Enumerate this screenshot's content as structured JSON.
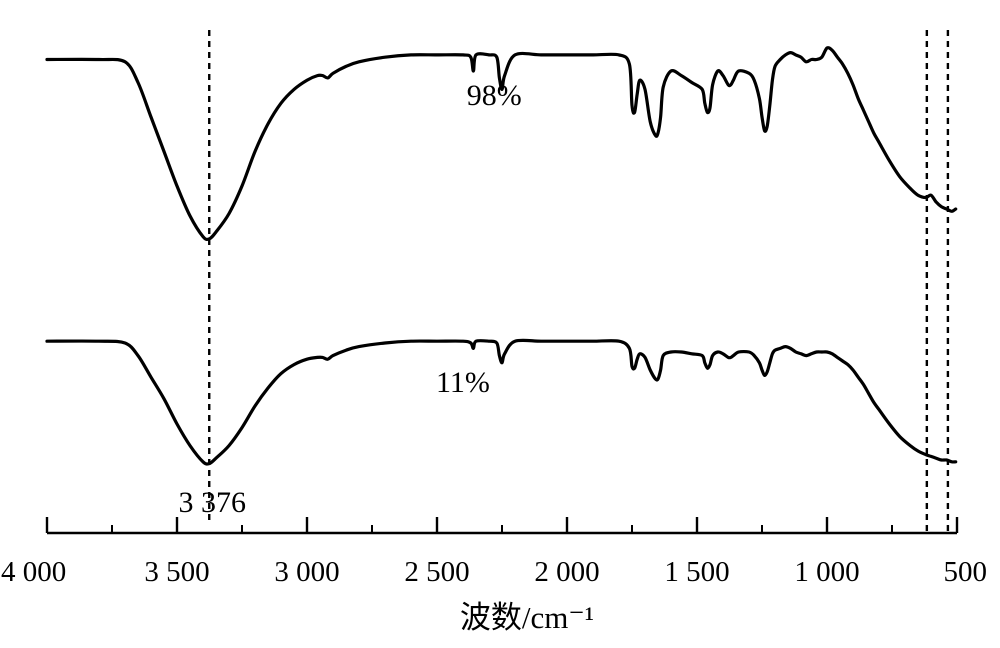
{
  "chart_data": {
    "type": "line",
    "title": "",
    "xlabel": "波数/cm⁻¹",
    "ylabel": "",
    "x_reversed": true,
    "xlim": [
      4000,
      500
    ],
    "xticks": [
      {
        "value": 4000,
        "label": "4 000"
      },
      {
        "value": 3500,
        "label": "3 500"
      },
      {
        "value": 3000,
        "label": "3 000"
      },
      {
        "value": 2500,
        "label": "2 500"
      },
      {
        "value": 2000,
        "label": "2 000"
      },
      {
        "value": 1500,
        "label": "1 500"
      },
      {
        "value": 1000,
        "label": "1 000"
      },
      {
        "value": 500,
        "label": "500"
      }
    ],
    "minor_tick_step": 250,
    "y_axis_shown": false,
    "ylim": [
      0,
      100
    ],
    "grid": false,
    "legend": "none",
    "reference_lines": [
      {
        "x": 3376,
        "style": "dashed"
      },
      {
        "x": 616,
        "style": "dashed"
      },
      {
        "x": 535,
        "style": "dashed"
      }
    ],
    "annotations": [
      {
        "text": "3 376",
        "x": 3376
      }
    ],
    "series": [
      {
        "label": "98%",
        "label_x": 2280,
        "x": [
          4000,
          3800,
          3700,
          3650,
          3600,
          3550,
          3500,
          3450,
          3400,
          3376,
          3350,
          3300,
          3250,
          3200,
          3150,
          3100,
          3050,
          3000,
          2960,
          2940,
          2920,
          2900,
          2850,
          2800,
          2700,
          2600,
          2500,
          2400,
          2370,
          2360,
          2350,
          2300,
          2270,
          2260,
          2250,
          2240,
          2200,
          2100,
          2000,
          1900,
          1800,
          1760,
          1750,
          1740,
          1730,
          1720,
          1700,
          1680,
          1660,
          1650,
          1640,
          1630,
          1600,
          1560,
          1520,
          1480,
          1470,
          1460,
          1450,
          1440,
          1420,
          1400,
          1380,
          1370,
          1360,
          1340,
          1300,
          1280,
          1260,
          1250,
          1240,
          1230,
          1220,
          1210,
          1200,
          1180,
          1160,
          1140,
          1120,
          1100,
          1080,
          1060,
          1040,
          1020,
          1000,
          980,
          960,
          940,
          920,
          900,
          880,
          860,
          840,
          820,
          800,
          760,
          720,
          680,
          650,
          620,
          600,
          580,
          560,
          540,
          520,
          505
        ],
        "y": [
          95,
          95,
          94,
          85,
          70,
          55,
          40,
          27,
          18,
          17,
          20,
          28,
          40,
          55,
          67,
          76,
          82,
          86,
          88,
          88,
          87,
          89,
          92,
          94,
          96,
          97,
          97,
          97,
          96,
          90,
          97,
          97,
          96,
          87,
          82,
          88,
          97,
          97,
          97,
          97,
          97,
          93,
          75,
          72,
          80,
          86,
          82,
          68,
          62,
          63,
          70,
          83,
          90,
          88,
          85,
          82,
          76,
          72,
          74,
          84,
          90,
          88,
          84,
          84,
          86,
          90,
          89,
          86,
          78,
          70,
          64,
          66,
          75,
          86,
          92,
          95,
          97,
          98,
          97,
          96,
          94,
          95,
          95,
          96,
          100,
          99,
          96,
          93,
          89,
          84,
          78,
          73,
          68,
          63,
          59,
          51,
          44,
          39,
          36,
          35,
          36,
          33,
          31,
          30,
          29,
          30
        ]
      },
      {
        "label": "11%",
        "label_x": 2400,
        "x": [
          4000,
          3800,
          3700,
          3650,
          3600,
          3550,
          3500,
          3450,
          3400,
          3376,
          3350,
          3300,
          3250,
          3200,
          3150,
          3100,
          3050,
          3000,
          2960,
          2940,
          2920,
          2900,
          2850,
          2800,
          2700,
          2600,
          2500,
          2400,
          2370,
          2360,
          2350,
          2300,
          2270,
          2260,
          2250,
          2240,
          2200,
          2100,
          2000,
          1900,
          1800,
          1760,
          1750,
          1740,
          1730,
          1720,
          1700,
          1680,
          1660,
          1650,
          1640,
          1630,
          1600,
          1560,
          1520,
          1480,
          1470,
          1460,
          1450,
          1440,
          1420,
          1400,
          1380,
          1370,
          1360,
          1340,
          1300,
          1280,
          1260,
          1250,
          1240,
          1230,
          1220,
          1210,
          1200,
          1180,
          1160,
          1140,
          1120,
          1100,
          1080,
          1060,
          1040,
          1020,
          1000,
          980,
          960,
          940,
          920,
          900,
          880,
          860,
          840,
          820,
          800,
          760,
          720,
          680,
          650,
          620,
          600,
          580,
          560,
          540,
          520,
          505
        ],
        "y": [
          96,
          96,
          95,
          88,
          76,
          64,
          50,
          38,
          29,
          28,
          31,
          38,
          48,
          60,
          70,
          78,
          83,
          86,
          87,
          87,
          86,
          88,
          91,
          93,
          95,
          96,
          96,
          96,
          95,
          92,
          96,
          96,
          95,
          88,
          84,
          89,
          96,
          96,
          96,
          96,
          96,
          92,
          82,
          81,
          86,
          89,
          87,
          80,
          75,
          75,
          80,
          88,
          90,
          90,
          89,
          88,
          84,
          81,
          83,
          88,
          90,
          89,
          87,
          87,
          88,
          90,
          90,
          88,
          84,
          80,
          77,
          79,
          84,
          89,
          91,
          92,
          93,
          92,
          90,
          89,
          88,
          89,
          90,
          90,
          90,
          89,
          87,
          85,
          83,
          80,
          76,
          72,
          67,
          62,
          58,
          50,
          43,
          38,
          35,
          33,
          32,
          31,
          30,
          30,
          29,
          29
        ]
      }
    ]
  }
}
